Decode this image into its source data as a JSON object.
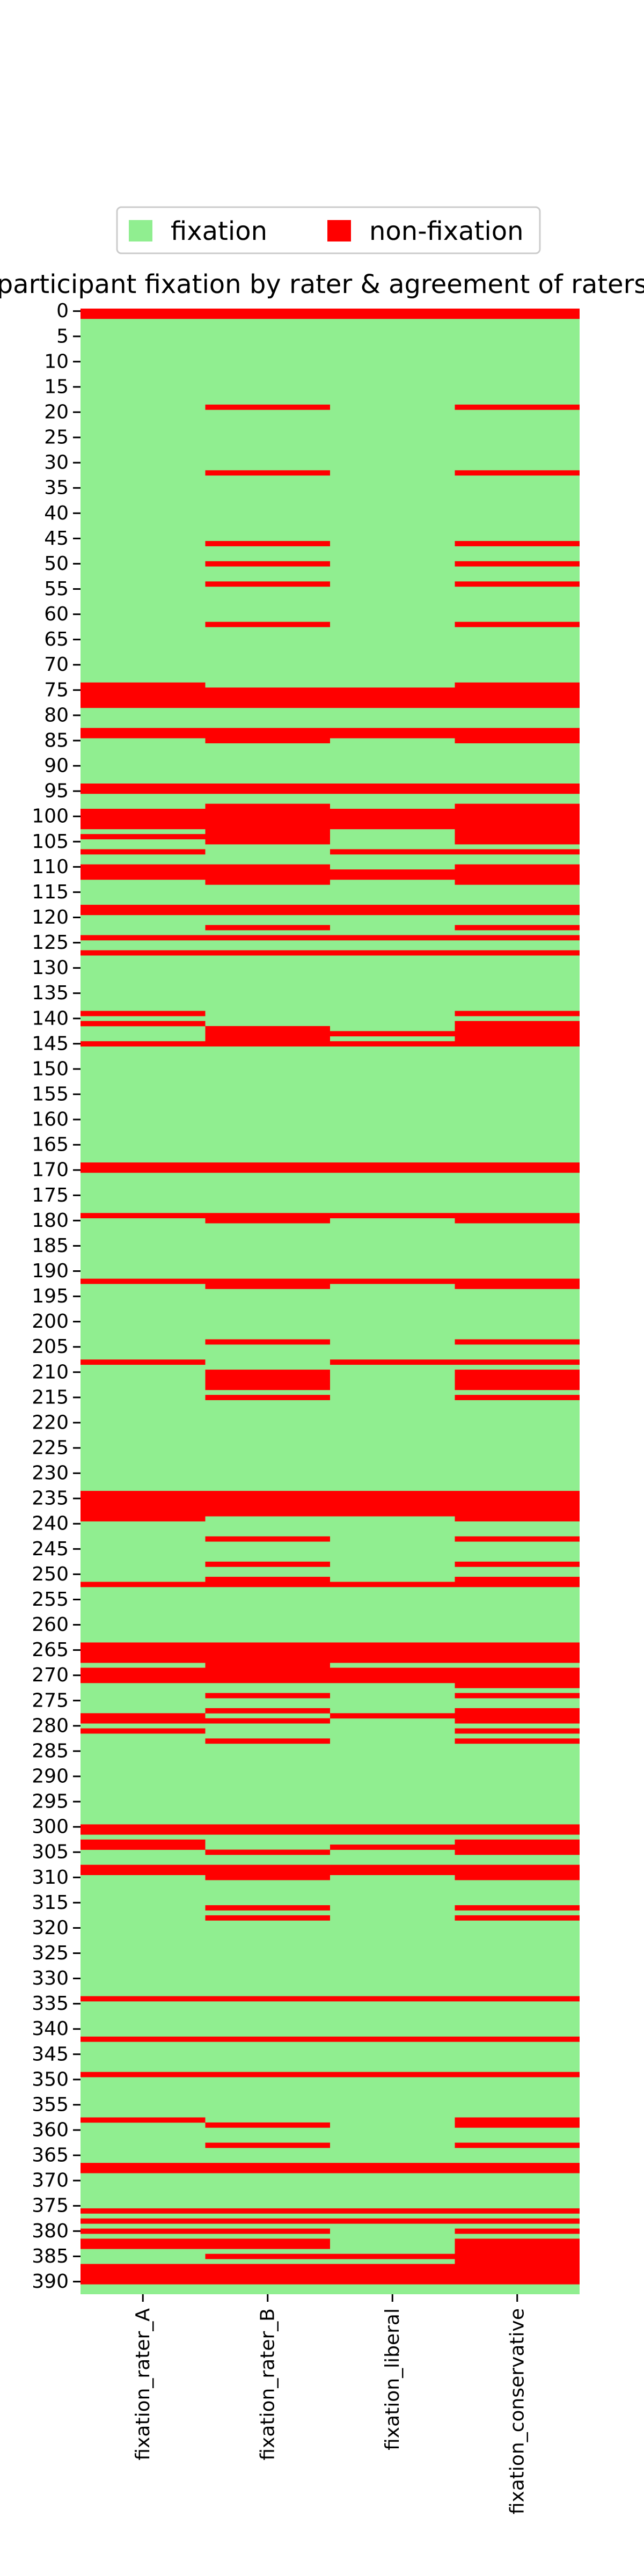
{
  "chart_data": {
    "type": "heatmap",
    "title": "participant fixation by rater & agreement of raters",
    "legend": {
      "position": "top-center",
      "entries": [
        {
          "label": "fixation",
          "value": 0,
          "color": "#90ee90"
        },
        {
          "label": "non-fixation",
          "value": 1,
          "color": "#ff0000"
        }
      ]
    },
    "columns": [
      "fixation_rater_A",
      "fixation_rater_B",
      "fixation_liberal",
      "fixation_conservative"
    ],
    "row_count": 393,
    "ytick_labels": [
      "0",
      "5",
      "10",
      "15",
      "20",
      "25",
      "30",
      "35",
      "40",
      "45",
      "50",
      "55",
      "60",
      "65",
      "70",
      "75",
      "80",
      "85",
      "90",
      "95",
      "100",
      "105",
      "110",
      "115",
      "120",
      "125",
      "130",
      "135",
      "140",
      "145",
      "150",
      "155",
      "160",
      "165",
      "170",
      "175",
      "180",
      "185",
      "190",
      "195",
      "200",
      "205",
      "210",
      "215",
      "220",
      "225",
      "230",
      "235",
      "240",
      "245",
      "250",
      "255",
      "260",
      "265",
      "270",
      "275",
      "280",
      "285",
      "290",
      "295",
      "300",
      "305",
      "310",
      "315",
      "320",
      "325",
      "330",
      "335",
      "340",
      "345",
      "350",
      "355",
      "360",
      "365",
      "370",
      "375",
      "380",
      "385",
      "390"
    ],
    "ytick_step": 5,
    "non_fixation_rows": {
      "fixation_rater_A": [
        [
          0,
          1
        ],
        [
          74,
          78
        ],
        [
          83,
          84
        ],
        [
          94,
          95
        ],
        [
          99,
          102
        ],
        [
          104,
          104
        ],
        [
          107,
          107
        ],
        [
          110,
          112
        ],
        [
          118,
          119
        ],
        [
          124,
          124
        ],
        [
          127,
          127
        ],
        [
          139,
          139
        ],
        [
          141,
          141
        ],
        [
          145,
          145
        ],
        [
          169,
          170
        ],
        [
          179,
          179
        ],
        [
          192,
          192
        ],
        [
          208,
          208
        ],
        [
          234,
          239
        ],
        [
          252,
          252
        ],
        [
          264,
          267
        ],
        [
          269,
          271
        ],
        [
          278,
          279
        ],
        [
          281,
          281
        ],
        [
          300,
          301
        ],
        [
          303,
          304
        ],
        [
          308,
          309
        ],
        [
          334,
          334
        ],
        [
          342,
          342
        ],
        [
          349,
          349
        ],
        [
          358,
          358
        ],
        [
          367,
          368
        ],
        [
          376,
          376
        ],
        [
          378,
          378
        ],
        [
          380,
          380
        ],
        [
          382,
          383
        ],
        [
          387,
          390
        ]
      ],
      "fixation_rater_B": [
        [
          0,
          1
        ],
        [
          19,
          19
        ],
        [
          32,
          32
        ],
        [
          46,
          46
        ],
        [
          50,
          50
        ],
        [
          54,
          54
        ],
        [
          62,
          62
        ],
        [
          75,
          78
        ],
        [
          83,
          85
        ],
        [
          94,
          95
        ],
        [
          98,
          105
        ],
        [
          110,
          113
        ],
        [
          118,
          119
        ],
        [
          122,
          122
        ],
        [
          124,
          124
        ],
        [
          127,
          127
        ],
        [
          142,
          145
        ],
        [
          169,
          170
        ],
        [
          179,
          180
        ],
        [
          192,
          193
        ],
        [
          204,
          204
        ],
        [
          210,
          213
        ],
        [
          215,
          215
        ],
        [
          234,
          238
        ],
        [
          243,
          243
        ],
        [
          248,
          248
        ],
        [
          251,
          252
        ],
        [
          264,
          271
        ],
        [
          274,
          274
        ],
        [
          277,
          277
        ],
        [
          279,
          279
        ],
        [
          283,
          283
        ],
        [
          300,
          301
        ],
        [
          305,
          305
        ],
        [
          308,
          310
        ],
        [
          316,
          316
        ],
        [
          318,
          318
        ],
        [
          334,
          334
        ],
        [
          342,
          342
        ],
        [
          349,
          349
        ],
        [
          359,
          359
        ],
        [
          363,
          363
        ],
        [
          367,
          368
        ],
        [
          376,
          376
        ],
        [
          378,
          378
        ],
        [
          380,
          380
        ],
        [
          382,
          383
        ],
        [
          385,
          385
        ],
        [
          387,
          390
        ]
      ],
      "fixation_rater_liberal": [],
      "fixation_liberal": [
        [
          0,
          1
        ],
        [
          75,
          78
        ],
        [
          83,
          84
        ],
        [
          94,
          95
        ],
        [
          99,
          102
        ],
        [
          107,
          107
        ],
        [
          111,
          112
        ],
        [
          118,
          119
        ],
        [
          124,
          124
        ],
        [
          127,
          127
        ],
        [
          143,
          143
        ],
        [
          145,
          145
        ],
        [
          169,
          170
        ],
        [
          179,
          179
        ],
        [
          192,
          192
        ],
        [
          208,
          208
        ],
        [
          234,
          238
        ],
        [
          252,
          252
        ],
        [
          264,
          267
        ],
        [
          269,
          271
        ],
        [
          278,
          278
        ],
        [
          300,
          301
        ],
        [
          304,
          304
        ],
        [
          308,
          309
        ],
        [
          334,
          334
        ],
        [
          342,
          342
        ],
        [
          349,
          349
        ],
        [
          367,
          368
        ],
        [
          376,
          376
        ],
        [
          378,
          378
        ],
        [
          385,
          385
        ],
        [
          387,
          390
        ]
      ],
      "fixation_conservative": [
        [
          0,
          1
        ],
        [
          19,
          19
        ],
        [
          32,
          32
        ],
        [
          46,
          46
        ],
        [
          50,
          50
        ],
        [
          54,
          54
        ],
        [
          62,
          62
        ],
        [
          74,
          78
        ],
        [
          83,
          85
        ],
        [
          94,
          95
        ],
        [
          98,
          105
        ],
        [
          107,
          107
        ],
        [
          110,
          113
        ],
        [
          118,
          119
        ],
        [
          122,
          122
        ],
        [
          124,
          124
        ],
        [
          127,
          127
        ],
        [
          139,
          139
        ],
        [
          141,
          145
        ],
        [
          169,
          170
        ],
        [
          179,
          180
        ],
        [
          192,
          193
        ],
        [
          204,
          204
        ],
        [
          208,
          208
        ],
        [
          210,
          213
        ],
        [
          215,
          215
        ],
        [
          234,
          239
        ],
        [
          243,
          243
        ],
        [
          248,
          248
        ],
        [
          251,
          252
        ],
        [
          264,
          267
        ],
        [
          269,
          272
        ],
        [
          274,
          274
        ],
        [
          277,
          279
        ],
        [
          281,
          281
        ],
        [
          283,
          283
        ],
        [
          300,
          301
        ],
        [
          303,
          305
        ],
        [
          308,
          310
        ],
        [
          316,
          316
        ],
        [
          318,
          318
        ],
        [
          334,
          334
        ],
        [
          342,
          342
        ],
        [
          349,
          349
        ],
        [
          358,
          359
        ],
        [
          363,
          363
        ],
        [
          367,
          368
        ],
        [
          376,
          376
        ],
        [
          378,
          378
        ],
        [
          380,
          380
        ],
        [
          382,
          390
        ]
      ]
    }
  }
}
